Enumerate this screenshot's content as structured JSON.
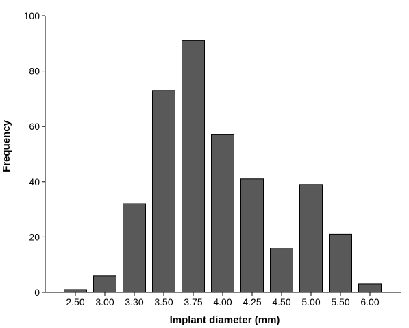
{
  "chart_data": {
    "type": "bar",
    "title": "",
    "xlabel": "Implant diameter (mm)",
    "ylabel": "Frequency",
    "categories": [
      "2.50",
      "3.00",
      "3.30",
      "3.50",
      "3.75",
      "4.00",
      "4.25",
      "4.50",
      "5.00",
      "5.50",
      "6.00"
    ],
    "values": [
      1,
      6,
      32,
      73,
      91,
      57,
      41,
      16,
      39,
      21,
      3
    ],
    "ylim": [
      0,
      100
    ],
    "yticks": [
      0,
      20,
      40,
      60,
      80,
      100
    ],
    "grid": false,
    "legend": "none",
    "colors": {
      "bar_fill": "#595959",
      "bar_stroke": "#000000",
      "axis": "#000000",
      "background": "#ffffff"
    }
  }
}
